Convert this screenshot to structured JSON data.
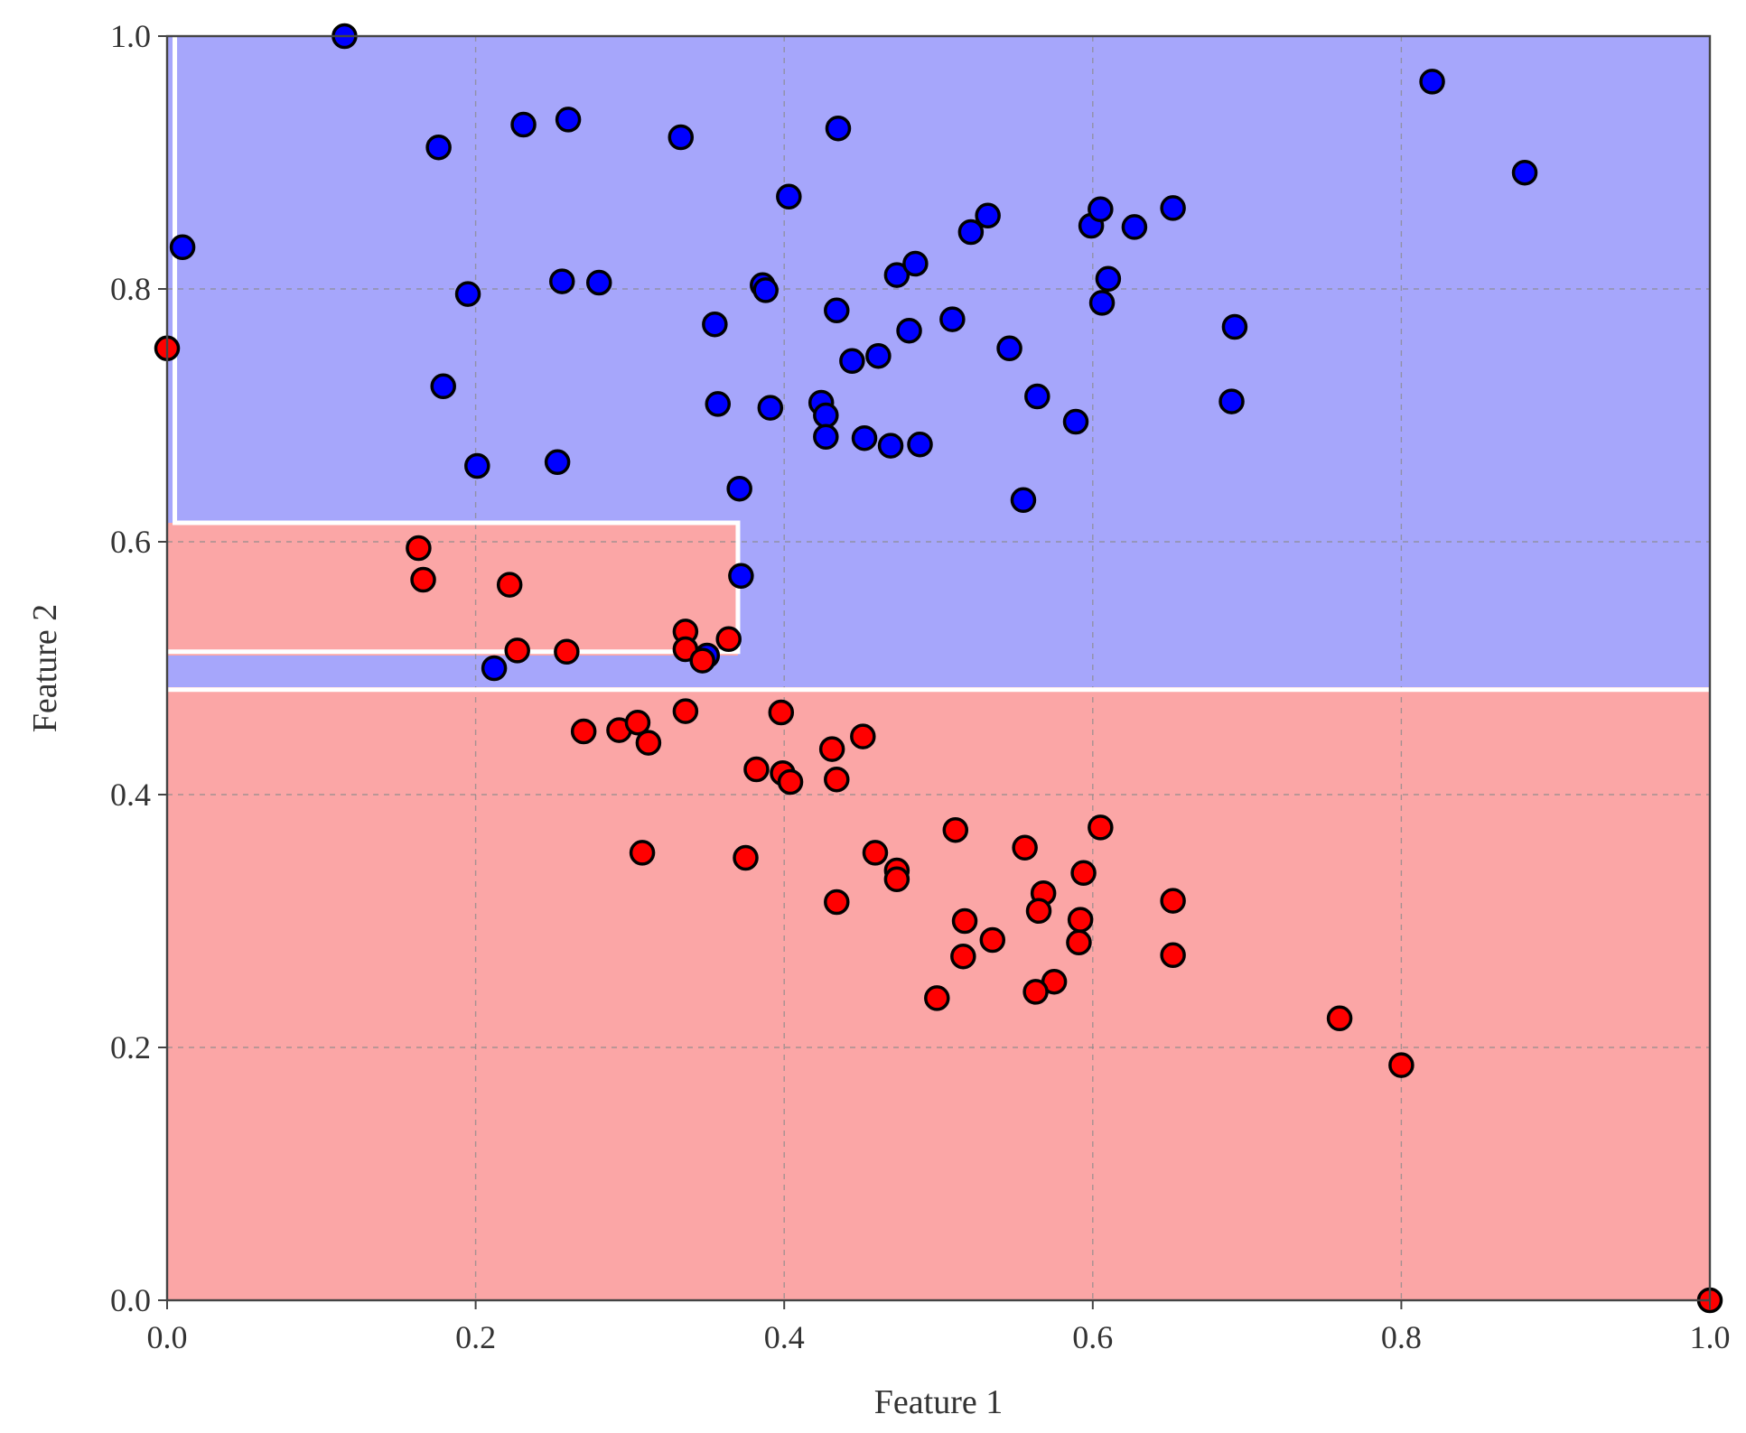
{
  "chart_data": {
    "type": "scatter",
    "title": "",
    "xlabel": "Feature 1",
    "ylabel": "Feature 2",
    "xlim": [
      0.0,
      1.0
    ],
    "ylim": [
      0.0,
      1.0
    ],
    "grid": true,
    "x_ticks": [
      "0.0",
      "0.2",
      "0.4",
      "0.6",
      "0.8",
      "1.0"
    ],
    "y_ticks": [
      "0.0",
      "0.2",
      "0.4",
      "0.6",
      "0.8",
      "1.0"
    ],
    "x_tick_values": [
      0.0,
      0.2,
      0.4,
      0.6,
      0.8,
      1.0
    ],
    "y_tick_values": [
      0.0,
      0.2,
      0.4,
      0.6,
      0.8,
      1.0
    ],
    "regions": [
      {
        "class": "blue",
        "color": "#a6a6fb",
        "x0": 0.0,
        "x1": 1.0,
        "y0": 0.485,
        "y1": 1.0
      },
      {
        "class": "red",
        "color": "#fba6a6",
        "x0": 0.0,
        "x1": 1.0,
        "y0": 0.0,
        "y1": 0.485
      },
      {
        "class": "red",
        "color": "#fba6a6",
        "x0": 0.0,
        "x1": 0.37,
        "y0": 0.51,
        "y1": 0.615
      }
    ],
    "boundaries": [
      {
        "points": [
          [
            0.0,
            0.483
          ],
          [
            1.0,
            0.483
          ]
        ]
      },
      {
        "points": [
          [
            0.005,
            1.0
          ],
          [
            0.005,
            0.615
          ],
          [
            0.37,
            0.615
          ],
          [
            0.37,
            0.513
          ],
          [
            0.0,
            0.513
          ]
        ]
      }
    ],
    "series": [
      {
        "class": "blue",
        "color": "#0000ff",
        "points": [
          [
            0.115,
            1.0
          ],
          [
            0.01,
            0.833
          ],
          [
            0.176,
            0.912
          ],
          [
            0.231,
            0.93
          ],
          [
            0.26,
            0.934
          ],
          [
            0.333,
            0.92
          ],
          [
            0.435,
            0.927
          ],
          [
            0.403,
            0.873
          ],
          [
            0.195,
            0.796
          ],
          [
            0.256,
            0.806
          ],
          [
            0.28,
            0.805
          ],
          [
            0.386,
            0.803
          ],
          [
            0.388,
            0.799
          ],
          [
            0.434,
            0.783
          ],
          [
            0.355,
            0.772
          ],
          [
            0.179,
            0.723
          ],
          [
            0.357,
            0.709
          ],
          [
            0.391,
            0.706
          ],
          [
            0.424,
            0.71
          ],
          [
            0.427,
            0.7
          ],
          [
            0.427,
            0.683
          ],
          [
            0.452,
            0.682
          ],
          [
            0.469,
            0.676
          ],
          [
            0.488,
            0.677
          ],
          [
            0.201,
            0.66
          ],
          [
            0.253,
            0.663
          ],
          [
            0.371,
            0.642
          ],
          [
            0.444,
            0.743
          ],
          [
            0.461,
            0.747
          ],
          [
            0.481,
            0.767
          ],
          [
            0.509,
            0.776
          ],
          [
            0.473,
            0.811
          ],
          [
            0.485,
            0.82
          ],
          [
            0.521,
            0.845
          ],
          [
            0.532,
            0.858
          ],
          [
            0.546,
            0.753
          ],
          [
            0.564,
            0.715
          ],
          [
            0.589,
            0.695
          ],
          [
            0.555,
            0.633
          ],
          [
            0.599,
            0.85
          ],
          [
            0.605,
            0.863
          ],
          [
            0.627,
            0.849
          ],
          [
            0.652,
            0.864
          ],
          [
            0.61,
            0.808
          ],
          [
            0.606,
            0.789
          ],
          [
            0.692,
            0.77
          ],
          [
            0.69,
            0.711
          ],
          [
            0.82,
            0.964
          ],
          [
            0.88,
            0.892
          ],
          [
            0.372,
            0.573
          ],
          [
            0.212,
            0.5
          ],
          [
            0.35,
            0.51
          ]
        ]
      },
      {
        "class": "red",
        "color": "#ff0000",
        "points": [
          [
            0.163,
            0.595
          ],
          [
            0.166,
            0.57
          ],
          [
            0.222,
            0.566
          ],
          [
            0.227,
            0.514
          ],
          [
            0.259,
            0.513
          ],
          [
            0.336,
            0.529
          ],
          [
            0.336,
            0.515
          ],
          [
            0.347,
            0.506
          ],
          [
            0.364,
            0.523
          ],
          [
            0.27,
            0.45
          ],
          [
            0.293,
            0.451
          ],
          [
            0.305,
            0.457
          ],
          [
            0.312,
            0.441
          ],
          [
            0.336,
            0.466
          ],
          [
            0.398,
            0.465
          ],
          [
            0.382,
            0.42
          ],
          [
            0.399,
            0.417
          ],
          [
            0.404,
            0.41
          ],
          [
            0.431,
            0.436
          ],
          [
            0.451,
            0.446
          ],
          [
            0.434,
            0.412
          ],
          [
            0.308,
            0.354
          ],
          [
            0.375,
            0.35
          ],
          [
            0.459,
            0.354
          ],
          [
            0.473,
            0.34
          ],
          [
            0.473,
            0.333
          ],
          [
            0.434,
            0.315
          ],
          [
            0.511,
            0.372
          ],
          [
            0.556,
            0.358
          ],
          [
            0.605,
            0.374
          ],
          [
            0.594,
            0.338
          ],
          [
            0.568,
            0.322
          ],
          [
            0.565,
            0.308
          ],
          [
            0.592,
            0.301
          ],
          [
            0.517,
            0.3
          ],
          [
            0.535,
            0.285
          ],
          [
            0.591,
            0.283
          ],
          [
            0.516,
            0.272
          ],
          [
            0.652,
            0.316
          ],
          [
            0.652,
            0.273
          ],
          [
            0.575,
            0.252
          ],
          [
            0.563,
            0.244
          ],
          [
            0.499,
            0.239
          ],
          [
            0.76,
            0.223
          ],
          [
            0.8,
            0.186
          ],
          [
            1.0,
            0.0
          ],
          [
            0.0,
            0.753
          ]
        ]
      }
    ]
  }
}
